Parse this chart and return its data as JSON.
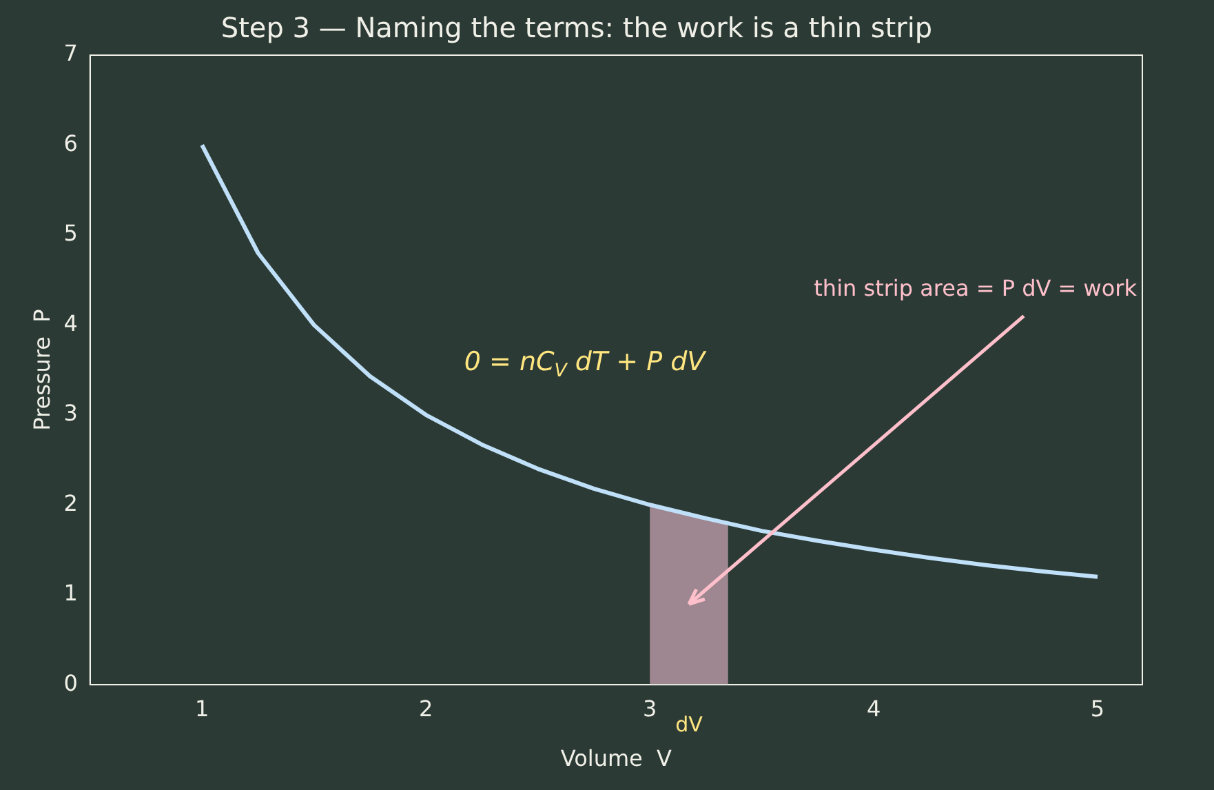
{
  "chart_data": {
    "type": "line",
    "title": "Step 3 — Naming the terms: the work is a thin strip",
    "xlabel": "Volume  V",
    "ylabel": "Pressure  P",
    "x": [
      1,
      1.25,
      1.5,
      1.75,
      2,
      2.25,
      2.5,
      2.75,
      3,
      3.25,
      3.5,
      3.75,
      4,
      4.25,
      4.5,
      4.75,
      5
    ],
    "series": [
      {
        "color": "#bfe0f8",
        "values": [
          6,
          4.8,
          4,
          3.43,
          3,
          2.67,
          2.4,
          2.18,
          2,
          1.85,
          1.71,
          1.6,
          1.5,
          1.41,
          1.33,
          1.26,
          1.2
        ]
      },
      {
        "type": "area",
        "color": "#9e8790",
        "x": [
          3,
          3.35
        ],
        "values": [
          2,
          1.79
        ]
      }
    ],
    "annotations": [
      "0 = nC$_{V}$ dT + P dV",
      "thin strip area = P dV = work",
      "dV"
    ],
    "xlim": [
      0.5,
      5.2
    ],
    "xticks": [
      1,
      2,
      3,
      4,
      5
    ],
    "ylim": [
      0,
      7
    ],
    "yticks": [
      0,
      1,
      2,
      3,
      4,
      5,
      6,
      7
    ],
    "grid": false,
    "legend": false,
    "marker": "none",
    "line_style": "solid"
  }
}
